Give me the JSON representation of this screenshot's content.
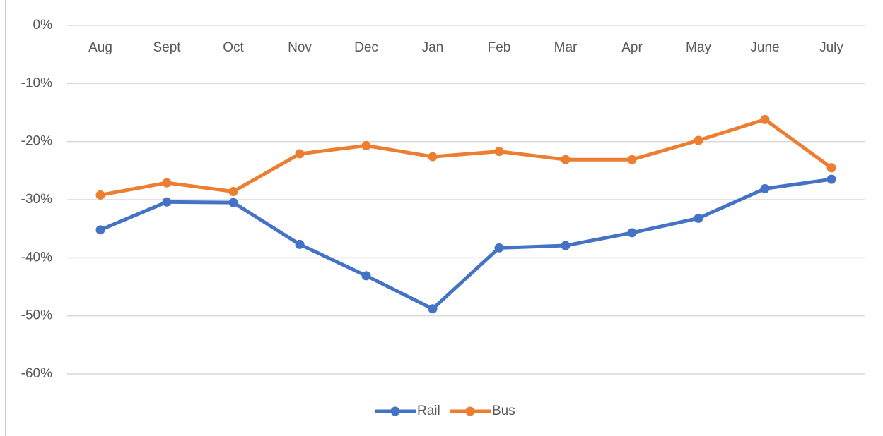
{
  "chart_data": {
    "type": "line",
    "categories": [
      "Aug",
      "Sept",
      "Oct",
      "Nov",
      "Dec",
      "Jan",
      "Feb",
      "Mar",
      "Apr",
      "May",
      "June",
      "July"
    ],
    "series": [
      {
        "name": "Rail",
        "color": "#4472c4",
        "values": [
          -35.2,
          -30.4,
          -30.5,
          -37.7,
          -43.1,
          -48.8,
          -38.3,
          -37.9,
          -35.7,
          -33.2,
          -28.1,
          -26.5
        ]
      },
      {
        "name": "Bus",
        "color": "#ed7d31",
        "values": [
          -29.2,
          -27.1,
          -28.6,
          -22.1,
          -20.7,
          -22.6,
          -21.7,
          -23.1,
          -23.1,
          -19.8,
          -16.2,
          -24.5
        ]
      }
    ],
    "ylim": [
      -60,
      0
    ],
    "yticks": [
      {
        "value": 0,
        "label": "0%"
      },
      {
        "value": -10,
        "label": "-10%"
      },
      {
        "value": -20,
        "label": "-20%"
      },
      {
        "value": -30,
        "label": "-30%"
      },
      {
        "value": -40,
        "label": "-40%"
      },
      {
        "value": -50,
        "label": "-50%"
      },
      {
        "value": -60,
        "label": "-60%"
      }
    ],
    "grid": true,
    "legend": "bottom"
  }
}
